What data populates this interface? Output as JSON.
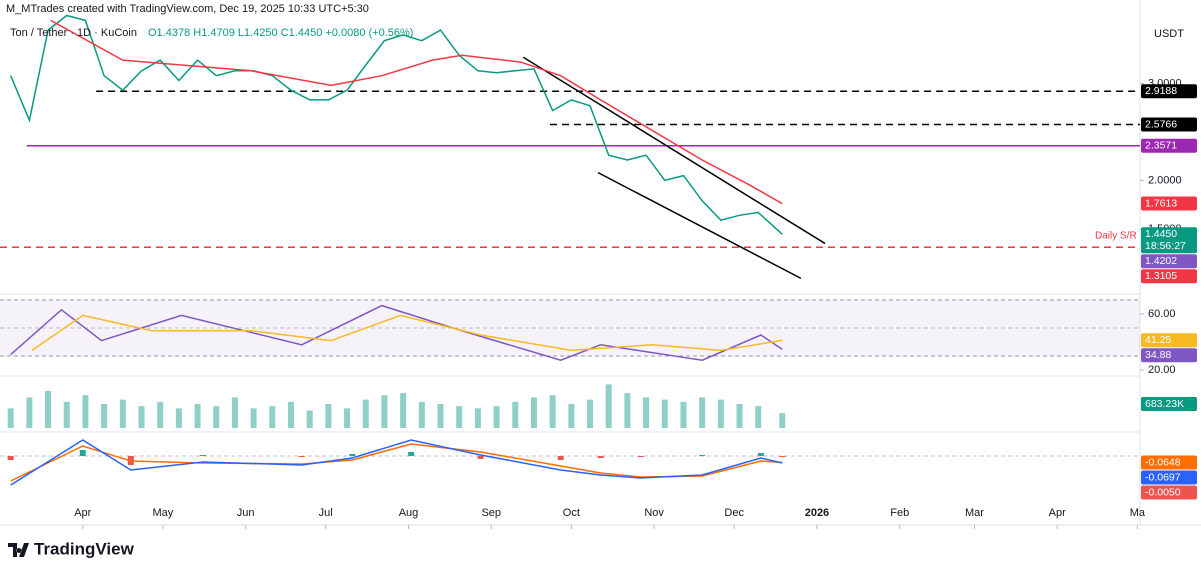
{
  "header": {
    "credit": "M_MTrades created with TradingView.com, Dec 19, 2025 10:33 UTC+5:30",
    "symbol": "Ton / Tether · 1D · KuCoin",
    "ohlc": "O1.4378 H1.4709 L1.4250 C1.4450 +0.0080 (+0.56%)",
    "currency": "USDT",
    "countdown": "18:56:27",
    "annotation": "Daily S/R",
    "logo": "TradingView"
  },
  "chart_data": [
    {
      "type": "line",
      "xlim": [
        0,
        427
      ],
      "ylim": [
        0.87,
        3.86
      ],
      "yticks": [
        {
          "value": 1.5,
          "label": "1.5000"
        },
        {
          "value": 2,
          "label": "2.0000"
        },
        {
          "value": 3,
          "label": "3.0000"
        }
      ],
      "series": [
        {
          "color": "#089981",
          "last_label": "1.4450",
          "x": [
            4,
            11,
            18,
            25,
            32,
            39,
            46,
            53,
            60,
            67,
            74,
            81,
            88,
            95,
            102,
            109,
            116,
            123,
            130,
            137,
            144,
            151,
            158,
            165,
            172,
            179,
            186,
            193,
            200,
            207,
            214,
            221,
            228,
            235,
            242,
            249,
            256,
            263,
            270,
            277,
            284,
            293
          ],
          "values": [
            3.08,
            2.62,
            3.55,
            3.7,
            3.65,
            3.08,
            2.93,
            3.13,
            3.24,
            3.03,
            3.24,
            3.08,
            3.13,
            3.13,
            3.08,
            2.93,
            2.83,
            2.83,
            2.93,
            3.19,
            3.44,
            3.5,
            3.44,
            3.55,
            3.29,
            3.13,
            3.11,
            3.13,
            3.15,
            2.72,
            2.83,
            2.77,
            2.26,
            2.21,
            2.26,
            2.0,
            2.05,
            1.79,
            1.59,
            1.64,
            1.67,
            1.445
          ]
        },
        {
          "color": "#f23645",
          "label_at_end": true,
          "x": [
            19,
            46,
            94,
            124,
            143,
            162,
            173,
            195,
            210,
            225,
            244,
            263,
            281,
            293
          ],
          "values": [
            3.65,
            3.24,
            3.13,
            2.98,
            3.08,
            3.24,
            3.29,
            3.22,
            3.08,
            2.83,
            2.52,
            2.21,
            1.95,
            1.7613
          ]
        }
      ],
      "levels": [
        {
          "value": 2.9188,
          "color": "#000000",
          "line": "dashed",
          "start": 36
        },
        {
          "value": 2.5766,
          "color": "#000000",
          "line": "dashed",
          "start": 206
        },
        {
          "value": 2.3571,
          "color": "#9c27b0",
          "line": "solid",
          "start": 10
        },
        {
          "value": 1.4202,
          "color": "#7e57c2",
          "line": null,
          "start": 0
        },
        {
          "value": 1.3105,
          "color": "#f23645",
          "line": "dashed",
          "start": 0
        }
      ],
      "trendlines": [
        {
          "x": [
            196,
            309
          ],
          "values": [
            3.27,
            1.35
          ]
        },
        {
          "x": [
            224,
            300
          ],
          "values": [
            2.08,
            0.99
          ]
        }
      ]
    },
    {
      "type": "line",
      "xlim": [
        0,
        427
      ],
      "ylim": [
        18.6,
        71.4
      ],
      "band": [
        30,
        70
      ],
      "midline": 50,
      "band_color": "#7e57c2",
      "yticks": [
        {
          "value": 20,
          "label": "20.00"
        },
        {
          "value": 60,
          "label": "60.00"
        }
      ],
      "series": [
        {
          "color": "#7e57c2",
          "label_at_end": true,
          "x": [
            4,
            23,
            38,
            68,
            113,
            143,
            173,
            210,
            225,
            263,
            285,
            293
          ],
          "values": [
            31,
            63,
            41,
            59,
            38,
            66,
            48,
            27,
            38,
            27,
            45,
            34.88
          ]
        },
        {
          "color": "#f7b924",
          "label_at_end": true,
          "x": [
            12,
            31,
            57,
            94,
            124,
            150,
            180,
            214,
            244,
            270,
            293
          ],
          "values": [
            34,
            59,
            48,
            48,
            41,
            59,
            45,
            34,
            38,
            34,
            41.25
          ]
        }
      ]
    },
    {
      "type": "bar",
      "xlim": [
        0,
        427
      ],
      "ylim": [
        0,
        2200000
      ],
      "series": [
        {
          "type": "bar",
          "color": "#8fcfc7",
          "last_label": "683.23K",
          "label_color": "#089981",
          "x": [
            4,
            11,
            18,
            25,
            32,
            39,
            46,
            53,
            60,
            67,
            74,
            81,
            88,
            95,
            102,
            109,
            116,
            123,
            130,
            137,
            144,
            151,
            158,
            165,
            172,
            179,
            186,
            193,
            200,
            207,
            214,
            221,
            228,
            235,
            242,
            249,
            256,
            263,
            270,
            277,
            284,
            293
          ],
          "values": [
            900000,
            1400000,
            1700000,
            1200000,
            1500000,
            1100000,
            1300000,
            1000000,
            1200000,
            900000,
            1100000,
            1000000,
            1400000,
            900000,
            1000000,
            1200000,
            800000,
            1100000,
            900000,
            1300000,
            1500000,
            1600000,
            1200000,
            1100000,
            1000000,
            900000,
            1000000,
            1200000,
            1400000,
            1500000,
            1100000,
            1300000,
            2000000,
            1600000,
            1400000,
            1300000,
            1200000,
            1400000,
            1300000,
            1100000,
            1000000,
            683230
          ]
        }
      ]
    },
    {
      "type": "line",
      "xlim": [
        0,
        427
      ],
      "ylim": [
        -0.49,
        0.21
      ],
      "midline": 0,
      "xticks": [
        {
          "value": 31,
          "label": "Apr"
        },
        {
          "value": 61,
          "label": "May"
        },
        {
          "value": 92,
          "label": "Jun"
        },
        {
          "value": 122,
          "label": "Jul"
        },
        {
          "value": 153,
          "label": "Aug"
        },
        {
          "value": 184,
          "label": "Sep"
        },
        {
          "value": 214,
          "label": "Oct"
        },
        {
          "value": 245,
          "label": "Nov"
        },
        {
          "value": 275,
          "label": "Dec"
        },
        {
          "value": 306,
          "label": "2026"
        },
        {
          "value": 337,
          "label": "Feb"
        },
        {
          "value": 365,
          "label": "Mar"
        },
        {
          "value": 396,
          "label": "Apr"
        },
        {
          "value": 426,
          "label": "Ma"
        }
      ],
      "series": [
        {
          "type": "bar",
          "color": "#26a69a",
          "neg_color": "#ef5350",
          "last_label": "-0.0050",
          "label_color": "#ef5350",
          "x": [
            4,
            31,
            49,
            76,
            113,
            132,
            154,
            180,
            210,
            225,
            240,
            263,
            285,
            293
          ],
          "values": [
            -0.04,
            0.06,
            -0.09,
            0.01,
            -0.01,
            0.02,
            0.04,
            -0.03,
            -0.04,
            -0.02,
            -0.01,
            0.01,
            0.03,
            -0.005
          ]
        },
        {
          "color": "#ff6d00",
          "label_at_end": true,
          "x": [
            4,
            31,
            49,
            76,
            113,
            132,
            154,
            180,
            210,
            225,
            240,
            263,
            285,
            293
          ],
          "values": [
            -0.25,
            0.1,
            -0.05,
            -0.07,
            -0.08,
            -0.04,
            0.12,
            0.04,
            -0.1,
            -0.17,
            -0.21,
            -0.2,
            -0.05,
            -0.0648
          ]
        },
        {
          "color": "#2962ff",
          "label_at_end": true,
          "x": [
            4,
            31,
            49,
            76,
            113,
            132,
            154,
            180,
            210,
            225,
            240,
            263,
            285,
            293
          ],
          "values": [
            -0.29,
            0.16,
            -0.14,
            -0.06,
            -0.09,
            -0.02,
            0.16,
            0.01,
            -0.14,
            -0.19,
            -0.22,
            -0.19,
            -0.02,
            -0.0697
          ]
        }
      ]
    }
  ]
}
